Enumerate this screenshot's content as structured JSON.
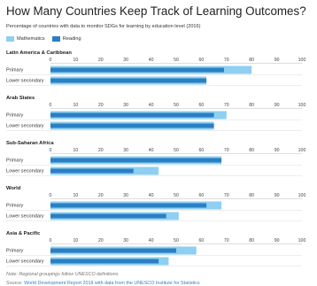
{
  "chart_data": {
    "type": "bar",
    "orientation": "horizontal",
    "title": "How Many Countries Keep Track of Learning Outcomes?",
    "subtitle": "Percentage of countries with data to monitor SDGs for learning by education level (2016)",
    "xlim": [
      0,
      100
    ],
    "ticks": [
      "0",
      "10",
      "20",
      "30",
      "40",
      "50",
      "60",
      "70",
      "80",
      "90",
      "100"
    ],
    "legend": [
      {
        "name": "Mathematics",
        "color": "#8ecff2"
      },
      {
        "name": "Reading",
        "color": "#2b7fc3"
      }
    ],
    "categories": [
      "Primary",
      "Lower secondary"
    ],
    "panels": [
      {
        "region": "Latin America & Caribbean",
        "mathematics": [
          80,
          62
        ],
        "reading": [
          69,
          62
        ]
      },
      {
        "region": "Arab States",
        "mathematics": [
          70,
          65
        ],
        "reading": [
          65,
          65
        ]
      },
      {
        "region": "Sub-Saharan Africa",
        "mathematics": [
          68,
          43
        ],
        "reading": [
          68,
          33
        ]
      },
      {
        "region": "World",
        "mathematics": [
          68,
          51
        ],
        "reading": [
          62,
          46
        ]
      },
      {
        "region": "Asia & Pacific",
        "mathematics": [
          58,
          47
        ],
        "reading": [
          50,
          43
        ]
      }
    ]
  },
  "footer": {
    "note": "Note: Regional groupings follow UNESCO definitions",
    "source_prefix": "Source: ",
    "source_link": "World Development Report 2018 with data from the UNESCO Institute for Statistics"
  }
}
